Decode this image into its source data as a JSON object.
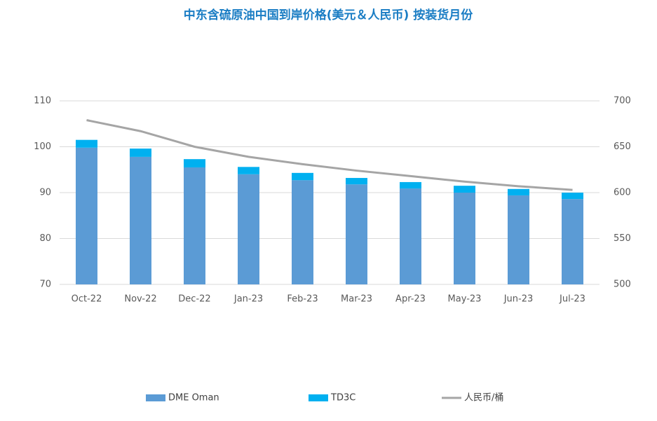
{
  "chart_data": {
    "type": "bar",
    "title": "中东含硫原油中国到岸价格(美元＆人民币) 按装货月份",
    "categories": [
      "Oct-22",
      "Nov-22",
      "Dec-22",
      "Jan-23",
      "Feb-23",
      "Mar-23",
      "Apr-23",
      "May-23",
      "Jun-23",
      "Jul-23"
    ],
    "stacked": true,
    "series": [
      {
        "name": "DME Oman",
        "color": "#5b9bd5",
        "values": [
          99.8,
          97.8,
          95.5,
          94.0,
          92.7,
          91.8,
          90.9,
          90.0,
          89.4,
          88.6
        ]
      },
      {
        "name": "TD3C",
        "color": "#00b0f0",
        "values": [
          1.7,
          1.8,
          1.8,
          1.6,
          1.6,
          1.4,
          1.4,
          1.5,
          1.4,
          1.4
        ]
      },
      {
        "name": "人民币/桶",
        "type": "line",
        "axis": "y2",
        "color": "#a5a5a5",
        "values": [
          679,
          667,
          650,
          639,
          631,
          624,
          618,
          612,
          607,
          603
        ]
      }
    ],
    "ylim": [
      70,
      110
    ],
    "yticks": [
      70,
      80,
      90,
      100,
      110
    ],
    "y2lim": [
      500,
      700
    ],
    "y2ticks": [
      500,
      550,
      600,
      650,
      700
    ],
    "grid": true,
    "legend": "bottom"
  }
}
